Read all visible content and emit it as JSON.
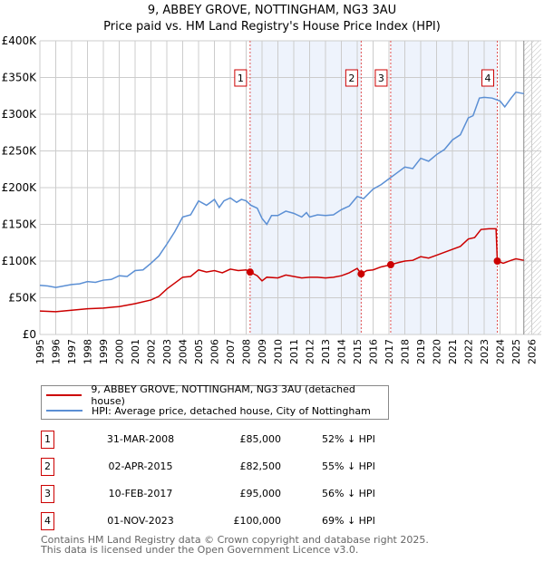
{
  "chart_data": {
    "type": "line",
    "title": "9, ABBEY GROVE, NOTTINGHAM, NG3 3AU",
    "subtitle": "Price paid vs. HM Land Registry's House Price Index (HPI)",
    "xlim": [
      1995,
      2026.6
    ],
    "ylim": [
      0,
      400000
    ],
    "y_ticks": [
      {
        "v": 0,
        "label": "£0"
      },
      {
        "v": 50000,
        "label": "£50K"
      },
      {
        "v": 100000,
        "label": "£100K"
      },
      {
        "v": 150000,
        "label": "£150K"
      },
      {
        "v": 200000,
        "label": "£200K"
      },
      {
        "v": 250000,
        "label": "£250K"
      },
      {
        "v": 300000,
        "label": "£300K"
      },
      {
        "v": 350000,
        "label": "£350K"
      },
      {
        "v": 400000,
        "label": "£400K"
      }
    ],
    "x_ticks": [
      "1995",
      "1996",
      "1997",
      "1998",
      "1999",
      "2000",
      "2001",
      "2002",
      "2003",
      "2004",
      "2005",
      "2006",
      "2007",
      "2008",
      "2009",
      "2010",
      "2011",
      "2012",
      "2013",
      "2014",
      "2015",
      "2016",
      "2017",
      "2018",
      "2019",
      "2020",
      "2021",
      "2022",
      "2023",
      "2024",
      "2025",
      "2026"
    ],
    "grid": true,
    "forecast_from": 2025.5,
    "shaded_ranges": [
      [
        2008.25,
        2015.25
      ],
      [
        2017.11,
        2023.83
      ]
    ],
    "series": [
      {
        "name": "9, ABBEY GROVE, NOTTINGHAM, NG3 3AU (detached house)",
        "color": "#cc0000",
        "points": [
          [
            1995,
            32
          ],
          [
            1996,
            31
          ],
          [
            1997,
            33
          ],
          [
            1998,
            35
          ],
          [
            1999,
            36
          ],
          [
            2000,
            38
          ],
          [
            2001,
            42
          ],
          [
            2002,
            47
          ],
          [
            2002.5,
            52
          ],
          [
            2003,
            62
          ],
          [
            2003.5,
            70
          ],
          [
            2004,
            78
          ],
          [
            2004.5,
            79
          ],
          [
            2005,
            88
          ],
          [
            2005.5,
            85
          ],
          [
            2006,
            87
          ],
          [
            2006.5,
            84
          ],
          [
            2007,
            89
          ],
          [
            2007.5,
            87
          ],
          [
            2008,
            88
          ],
          [
            2008.25,
            85
          ],
          [
            2008.7,
            80
          ],
          [
            2009,
            73
          ],
          [
            2009.3,
            78
          ],
          [
            2010,
            77
          ],
          [
            2010.5,
            81
          ],
          [
            2011,
            79
          ],
          [
            2011.5,
            77
          ],
          [
            2012,
            78
          ],
          [
            2012.5,
            78
          ],
          [
            2013,
            77
          ],
          [
            2013.5,
            78
          ],
          [
            2014,
            80
          ],
          [
            2014.5,
            84
          ],
          [
            2015,
            90
          ],
          [
            2015.25,
            82.5
          ],
          [
            2015.6,
            87
          ],
          [
            2016,
            88
          ],
          [
            2016.5,
            92
          ],
          [
            2017.11,
            95
          ],
          [
            2017.6,
            98
          ],
          [
            2018,
            100
          ],
          [
            2018.5,
            101
          ],
          [
            2019,
            106
          ],
          [
            2019.5,
            104
          ],
          [
            2020,
            108
          ],
          [
            2020.5,
            112
          ],
          [
            2021,
            116
          ],
          [
            2021.5,
            120
          ],
          [
            2022,
            130
          ],
          [
            2022.4,
            132
          ],
          [
            2022.8,
            143
          ],
          [
            2023.3,
            144
          ],
          [
            2023.75,
            144
          ],
          [
            2023.83,
            100
          ],
          [
            2024.2,
            97
          ],
          [
            2024.7,
            101
          ],
          [
            2025,
            103
          ],
          [
            2025.5,
            101
          ]
        ]
      },
      {
        "name": "HPI: Average price, detached house, City of Nottingham",
        "color": "#5b8fd4",
        "points": [
          [
            1995,
            67
          ],
          [
            1995.5,
            66
          ],
          [
            1996,
            64
          ],
          [
            1996.5,
            66
          ],
          [
            1997,
            68
          ],
          [
            1997.5,
            69
          ],
          [
            1998,
            72
          ],
          [
            1998.5,
            71
          ],
          [
            1999,
            74
          ],
          [
            1999.5,
            75
          ],
          [
            2000,
            80
          ],
          [
            2000.5,
            79
          ],
          [
            2001,
            87
          ],
          [
            2001.5,
            88
          ],
          [
            2002,
            97
          ],
          [
            2002.5,
            107
          ],
          [
            2003,
            123
          ],
          [
            2003.5,
            140
          ],
          [
            2004,
            160
          ],
          [
            2004.5,
            163
          ],
          [
            2005,
            182
          ],
          [
            2005.5,
            176
          ],
          [
            2006,
            184
          ],
          [
            2006.3,
            173
          ],
          [
            2006.6,
            182
          ],
          [
            2007,
            186
          ],
          [
            2007.4,
            180
          ],
          [
            2007.7,
            184
          ],
          [
            2008,
            182
          ],
          [
            2008.3,
            176
          ],
          [
            2008.7,
            172
          ],
          [
            2009,
            158
          ],
          [
            2009.3,
            150
          ],
          [
            2009.6,
            162
          ],
          [
            2010,
            162
          ],
          [
            2010.5,
            168
          ],
          [
            2011,
            165
          ],
          [
            2011.5,
            160
          ],
          [
            2011.8,
            166
          ],
          [
            2012,
            160
          ],
          [
            2012.5,
            163
          ],
          [
            2013,
            162
          ],
          [
            2013.5,
            163
          ],
          [
            2014,
            170
          ],
          [
            2014.5,
            175
          ],
          [
            2015,
            188
          ],
          [
            2015.4,
            185
          ],
          [
            2016,
            198
          ],
          [
            2016.5,
            204
          ],
          [
            2017,
            212
          ],
          [
            2017.5,
            220
          ],
          [
            2018,
            228
          ],
          [
            2018.5,
            226
          ],
          [
            2019,
            240
          ],
          [
            2019.5,
            236
          ],
          [
            2020,
            245
          ],
          [
            2020.5,
            252
          ],
          [
            2021,
            265
          ],
          [
            2021.5,
            272
          ],
          [
            2022,
            295
          ],
          [
            2022.3,
            298
          ],
          [
            2022.7,
            322
          ],
          [
            2023,
            323
          ],
          [
            2023.5,
            322
          ],
          [
            2024,
            318
          ],
          [
            2024.3,
            310
          ],
          [
            2024.7,
            322
          ],
          [
            2025,
            330
          ],
          [
            2025.5,
            328
          ]
        ]
      }
    ],
    "sales": [
      {
        "n": "1",
        "x": 2008.25,
        "y": 85
      },
      {
        "n": "2",
        "x": 2015.25,
        "y": 82.5
      },
      {
        "n": "3",
        "x": 2017.11,
        "y": 95
      },
      {
        "n": "4",
        "x": 2023.83,
        "y": 100
      }
    ]
  },
  "legend": {
    "property": "9, ABBEY GROVE, NOTTINGHAM, NG3 3AU (detached house)",
    "hpi": "HPI: Average price, detached house, City of Nottingham"
  },
  "transactions": [
    {
      "n": "1",
      "date": "31-MAR-2008",
      "price": "£85,000",
      "hpi": "52% ↓ HPI"
    },
    {
      "n": "2",
      "date": "02-APR-2015",
      "price": "£82,500",
      "hpi": "55% ↓ HPI"
    },
    {
      "n": "3",
      "date": "10-FEB-2017",
      "price": "£95,000",
      "hpi": "56% ↓ HPI"
    },
    {
      "n": "4",
      "date": "01-NOV-2023",
      "price": "£100,000",
      "hpi": "69% ↓ HPI"
    }
  ],
  "footer": {
    "line1": "Contains HM Land Registry data © Crown copyright and database right 2025.",
    "line2": "This data is licensed under the Open Government Licence v3.0."
  }
}
